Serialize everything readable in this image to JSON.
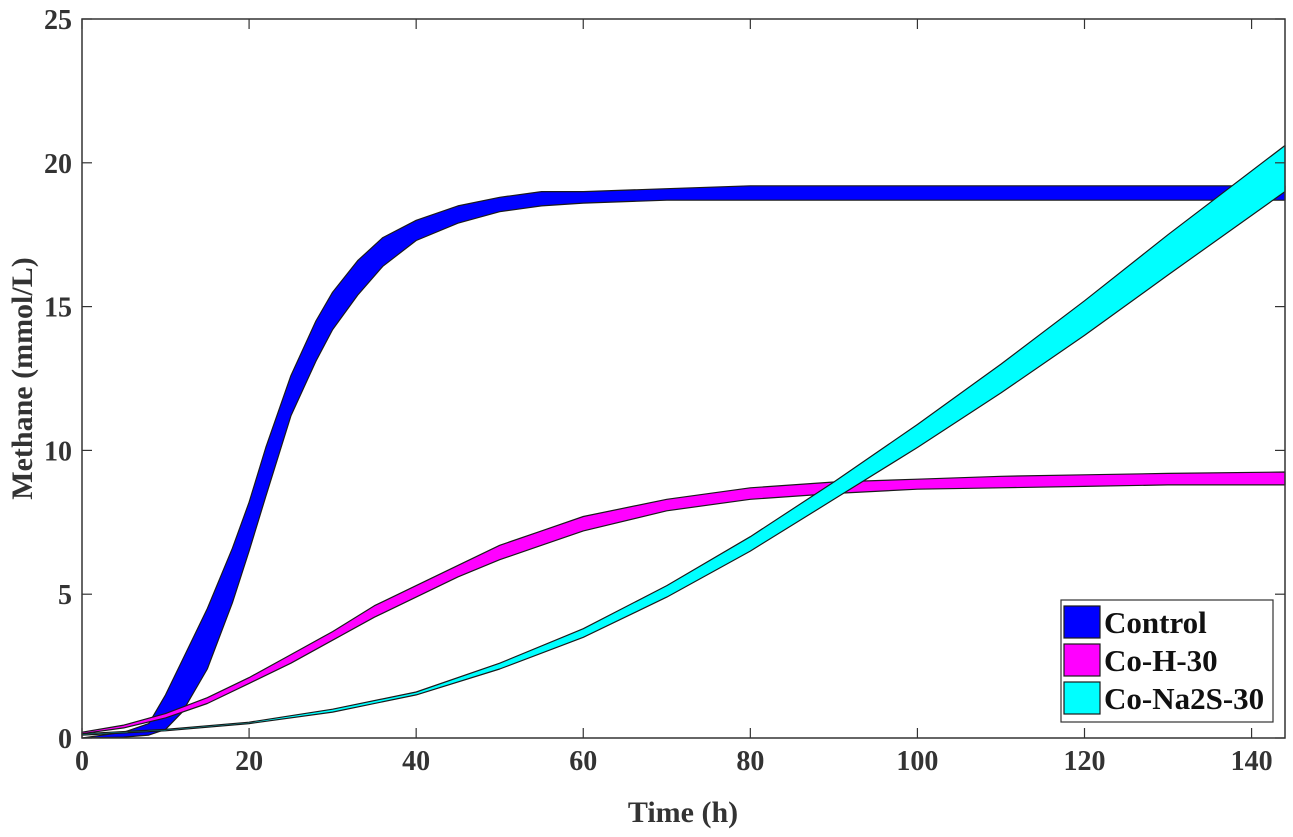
{
  "chart_data": {
    "type": "area",
    "title": "",
    "xlabel": "Time (h)",
    "ylabel": "Methane (mmol/L)",
    "xlim": [
      0,
      144
    ],
    "ylim": [
      0,
      25
    ],
    "xticks": [
      0,
      20,
      40,
      60,
      80,
      100,
      120,
      140
    ],
    "yticks": [
      0,
      5,
      10,
      15,
      20,
      25
    ],
    "grid": false,
    "legend_position": "bottom-right",
    "series": [
      {
        "name": "Control",
        "color": "#0000ff",
        "x": [
          0,
          5,
          8,
          10,
          12,
          15,
          18,
          20,
          22,
          25,
          28,
          30,
          33,
          36,
          40,
          45,
          50,
          55,
          60,
          70,
          80,
          100,
          120,
          144
        ],
        "lower": [
          0.0,
          0.03,
          0.1,
          0.3,
          0.9,
          2.4,
          4.7,
          6.5,
          8.4,
          11.2,
          13.1,
          14.2,
          15.4,
          16.4,
          17.3,
          17.9,
          18.3,
          18.5,
          18.6,
          18.7,
          18.7,
          18.7,
          18.7,
          18.7
        ],
        "upper": [
          0.0,
          0.2,
          0.5,
          1.5,
          2.7,
          4.5,
          6.6,
          8.2,
          10.1,
          12.6,
          14.5,
          15.5,
          16.6,
          17.4,
          18.0,
          18.5,
          18.8,
          19.0,
          19.0,
          19.1,
          19.2,
          19.2,
          19.2,
          19.2
        ]
      },
      {
        "name": "Co-H-30",
        "color": "#ff00ff",
        "x": [
          0,
          5,
          10,
          15,
          20,
          25,
          30,
          35,
          40,
          45,
          50,
          55,
          60,
          70,
          80,
          90,
          100,
          110,
          120,
          130,
          144
        ],
        "lower": [
          0.15,
          0.35,
          0.7,
          1.2,
          1.9,
          2.6,
          3.4,
          4.2,
          4.9,
          5.6,
          6.2,
          6.7,
          7.2,
          7.9,
          8.3,
          8.5,
          8.65,
          8.7,
          8.75,
          8.8,
          8.8
        ],
        "upper": [
          0.2,
          0.45,
          0.85,
          1.4,
          2.1,
          2.9,
          3.7,
          4.6,
          5.3,
          6.0,
          6.7,
          7.2,
          7.7,
          8.3,
          8.7,
          8.9,
          9.0,
          9.1,
          9.15,
          9.2,
          9.25
        ]
      },
      {
        "name": "Co-Na2S-30",
        "color": "#00ffff",
        "x": [
          0,
          10,
          20,
          30,
          40,
          50,
          60,
          70,
          80,
          90,
          100,
          110,
          120,
          130,
          144
        ],
        "lower": [
          0.1,
          0.25,
          0.5,
          0.9,
          1.5,
          2.4,
          3.5,
          4.9,
          6.5,
          8.3,
          10.1,
          12.0,
          14.0,
          16.1,
          19.0
        ],
        "upper": [
          0.15,
          0.3,
          0.55,
          1.0,
          1.6,
          2.6,
          3.8,
          5.3,
          7.0,
          8.9,
          10.9,
          13.0,
          15.2,
          17.5,
          20.6
        ]
      }
    ]
  }
}
